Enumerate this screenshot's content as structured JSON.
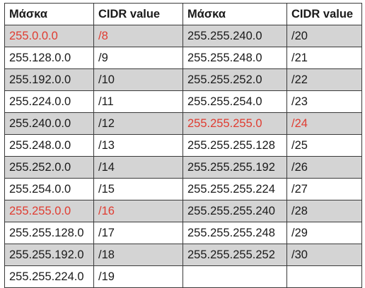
{
  "headers": {
    "mask_left": "Μάσκα",
    "cidr_left": "CIDR value",
    "mask_right": "Μάσκα",
    "cidr_right": "CIDR value"
  },
  "colors": {
    "highlight": "#e03c31",
    "shade": "#d4d4d4",
    "border": "#3a3a3a"
  },
  "rows": [
    {
      "left": {
        "mask": "255.0.0.0",
        "cidr": "/8",
        "highlight": true
      },
      "right": {
        "mask": "255.255.240.0",
        "cidr": "/20",
        "highlight": false
      }
    },
    {
      "left": {
        "mask": "255.128.0.0",
        "cidr": "/9",
        "highlight": false
      },
      "right": {
        "mask": "255.255.248.0",
        "cidr": "/21",
        "highlight": false
      }
    },
    {
      "left": {
        "mask": "255.192.0.0",
        "cidr": "/10",
        "highlight": false
      },
      "right": {
        "mask": "255.255.252.0",
        "cidr": "/22",
        "highlight": false
      }
    },
    {
      "left": {
        "mask": "255.224.0.0",
        "cidr": "/11",
        "highlight": false
      },
      "right": {
        "mask": "255.255.254.0",
        "cidr": "/23",
        "highlight": false
      }
    },
    {
      "left": {
        "mask": "255.240.0.0",
        "cidr": "/12",
        "highlight": false
      },
      "right": {
        "mask": "255.255.255.0",
        "cidr": "/24",
        "highlight": true
      }
    },
    {
      "left": {
        "mask": "255.248.0.0",
        "cidr": "/13",
        "highlight": false
      },
      "right": {
        "mask": "255.255.255.128",
        "cidr": "/25",
        "highlight": false
      }
    },
    {
      "left": {
        "mask": "255.252.0.0",
        "cidr": "/14",
        "highlight": false
      },
      "right": {
        "mask": "255.255.255.192",
        "cidr": "/26",
        "highlight": false
      }
    },
    {
      "left": {
        "mask": "255.254.0.0",
        "cidr": "/15",
        "highlight": false
      },
      "right": {
        "mask": "255.255.255.224",
        "cidr": "/27",
        "highlight": false
      }
    },
    {
      "left": {
        "mask": "255.255.0.0",
        "cidr": "/16",
        "highlight": true
      },
      "right": {
        "mask": "255.255.255.240",
        "cidr": "/28",
        "highlight": false
      }
    },
    {
      "left": {
        "mask": "255.255.128.0",
        "cidr": "/17",
        "highlight": false
      },
      "right": {
        "mask": "255.255.255.248",
        "cidr": "/29",
        "highlight": false
      }
    },
    {
      "left": {
        "mask": "255.255.192.0",
        "cidr": "/18",
        "highlight": false
      },
      "right": {
        "mask": "255.255.255.252",
        "cidr": "/30",
        "highlight": false
      }
    },
    {
      "left": {
        "mask": "255.255.224.0",
        "cidr": "/19",
        "highlight": false
      },
      "right": {
        "mask": "",
        "cidr": "",
        "highlight": false
      }
    }
  ]
}
